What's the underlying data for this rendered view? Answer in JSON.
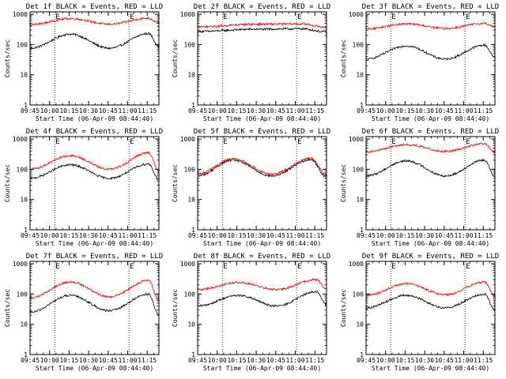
{
  "colors": {
    "events": "#000000",
    "lld": "#ff0000",
    "axes": "#000000",
    "background": "#ffffff"
  },
  "chart_data": [
    {
      "type": "line",
      "title": "Det 1f BLACK = Events, RED = LLD",
      "ylabel": "Counts/sec",
      "xlabel": "Start Time (06-Apr-09 08:44:40)",
      "x_tick_labels": [
        "09:45",
        "10:00",
        "10:15",
        "10:30",
        "10:45",
        "11:00",
        "11:15"
      ],
      "y_tick_labels": [
        "1",
        "10",
        "100",
        "1000"
      ],
      "yscale": "log",
      "ylim": [
        1,
        1200
      ],
      "xlim_minutes": [
        "09:45",
        "11:24"
      ],
      "vlines": [
        "10:04",
        "11:01"
      ],
      "markers": [
        "E",
        "E"
      ],
      "grid": false,
      "series": [
        {
          "name": "Events",
          "color": "#000000",
          "peaks": [
            [
              "10:16",
              220
            ],
            [
              "11:16",
              230
            ]
          ],
          "troughs": [
            [
              "09:45",
              75
            ],
            [
              "10:46",
              75
            ],
            [
              "11:24",
              90
            ]
          ]
        },
        {
          "name": "LLD",
          "color": "#ff0000",
          "peaks": [
            [
              "10:16",
              720
            ],
            [
              "11:16",
              740
            ]
          ],
          "troughs": [
            [
              "09:45",
              450
            ],
            [
              "10:46",
              470
            ],
            [
              "11:24",
              520
            ]
          ]
        }
      ]
    },
    {
      "type": "line",
      "title": "Det 2f BLACK = Events, RED = LLD",
      "ylabel": "Counts/sec",
      "xlabel": "Start Time (06-Apr-09 08:44:40)",
      "x_tick_labels": [
        "09:45",
        "10:00",
        "10:15",
        "10:30",
        "10:45",
        "11:00",
        "11:15"
      ],
      "y_tick_labels": [
        "1",
        "10",
        "100",
        "1000"
      ],
      "yscale": "log",
      "ylim": [
        1,
        1200
      ],
      "xlim_minutes": [
        "09:45",
        "11:24"
      ],
      "vlines": [
        "10:04",
        "11:01"
      ],
      "markers": [
        "E",
        "E"
      ],
      "grid": false,
      "series": [
        {
          "name": "Events",
          "color": "#000000",
          "peaks": [
            [
              "10:30",
              320
            ],
            [
              "11:05",
              330
            ]
          ],
          "troughs": [
            [
              "09:45",
              270
            ],
            [
              "11:24",
              260
            ]
          ]
        },
        {
          "name": "LLD",
          "color": "#ff0000",
          "peaks": [
            [
              "10:30",
              470
            ],
            [
              "11:05",
              480
            ]
          ],
          "troughs": [
            [
              "09:45",
              380
            ],
            [
              "11:24",
              370
            ]
          ]
        }
      ]
    },
    {
      "type": "line",
      "title": "Det 3f BLACK = Events, RED = LLD",
      "ylabel": "Counts/sec",
      "xlabel": "Start Time (06-Apr-09 08:44:40)",
      "x_tick_labels": [
        "09:45",
        "10:00",
        "10:15",
        "10:30",
        "10:45",
        "11:00",
        "11:15"
      ],
      "y_tick_labels": [
        "1",
        "10",
        "100",
        "1000"
      ],
      "yscale": "log",
      "ylim": [
        1,
        1200
      ],
      "xlim_minutes": [
        "09:45",
        "11:24"
      ],
      "vlines": [
        "10:04",
        "11:01"
      ],
      "markers": [
        "E",
        "E"
      ],
      "grid": false,
      "series": [
        {
          "name": "Events",
          "color": "#000000",
          "peaks": [
            [
              "10:16",
              90
            ],
            [
              "11:16",
              95
            ]
          ],
          "troughs": [
            [
              "09:45",
              33
            ],
            [
              "10:46",
              33
            ],
            [
              "11:24",
              38
            ]
          ]
        },
        {
          "name": "LLD",
          "color": "#ff0000",
          "peaks": [
            [
              "10:16",
              480
            ],
            [
              "11:16",
              500
            ]
          ],
          "troughs": [
            [
              "09:45",
              330
            ],
            [
              "10:46",
              340
            ],
            [
              "11:24",
              380
            ]
          ]
        }
      ]
    },
    {
      "type": "line",
      "title": "Det 4f BLACK = Events, RED = LLD",
      "ylabel": "Counts/sec",
      "xlabel": "Start Time (06-Apr-09 08:44:40)",
      "x_tick_labels": [
        "09:45",
        "10:00",
        "10:15",
        "10:30",
        "10:45",
        "11:00",
        "11:15"
      ],
      "y_tick_labels": [
        "1",
        "10",
        "100",
        "1000"
      ],
      "yscale": "log",
      "ylim": [
        1,
        1200
      ],
      "xlim_minutes": [
        "09:45",
        "11:24"
      ],
      "vlines": [
        "10:04",
        "11:01"
      ],
      "markers": [
        "E",
        "E"
      ],
      "grid": false,
      "series": [
        {
          "name": "Events",
          "color": "#000000",
          "peaks": [
            [
              "10:16",
              140
            ],
            [
              "11:16",
              150
            ]
          ],
          "troughs": [
            [
              "09:45",
              50
            ],
            [
              "10:46",
              50
            ],
            [
              "11:24",
              45
            ]
          ]
        },
        {
          "name": "LLD",
          "color": "#ff0000",
          "peaks": [
            [
              "10:16",
              280
            ],
            [
              "11:16",
              350
            ]
          ],
          "troughs": [
            [
              "09:45",
              100
            ],
            [
              "10:46",
              100
            ],
            [
              "11:24",
              90
            ]
          ]
        }
      ]
    },
    {
      "type": "line",
      "title": "Det 5f BLACK = Events, RED = LLD",
      "ylabel": "Counts/sec",
      "xlabel": "Start Time (06-Apr-09 08:44:40)",
      "x_tick_labels": [
        "09:45",
        "10:00",
        "10:15",
        "10:30",
        "10:45",
        "11:00",
        "11:15"
      ],
      "y_tick_labels": [
        "1",
        "10",
        "100",
        "1000"
      ],
      "yscale": "log",
      "ylim": [
        1,
        1200
      ],
      "xlim_minutes": [
        "09:45",
        "11:24"
      ],
      "vlines": [
        "10:04",
        "11:01"
      ],
      "markers": [
        "E",
        "E"
      ],
      "grid": false,
      "series": [
        {
          "name": "Events",
          "color": "#000000",
          "peaks": [
            [
              "10:12",
              200
            ],
            [
              "11:12",
              210
            ]
          ],
          "troughs": [
            [
              "09:45",
              60
            ],
            [
              "10:42",
              60
            ],
            [
              "11:24",
              55
            ]
          ]
        },
        {
          "name": "LLD",
          "color": "#ff0000",
          "peaks": [
            [
              "10:12",
              220
            ],
            [
              "11:12",
              230
            ]
          ],
          "troughs": [
            [
              "09:45",
              70
            ],
            [
              "10:42",
              70
            ],
            [
              "11:24",
              65
            ]
          ]
        }
      ]
    },
    {
      "type": "line",
      "title": "Det 6f BLACK = Events, RED = LLD",
      "ylabel": "Counts/sec",
      "xlabel": "Start Time (06-Apr-09 08:44:40)",
      "x_tick_labels": [
        "09:45",
        "10:00",
        "10:15",
        "10:30",
        "10:45",
        "11:00",
        "11:15"
      ],
      "y_tick_labels": [
        "1",
        "10",
        "100",
        "1000"
      ],
      "yscale": "log",
      "ylim": [
        1,
        1200
      ],
      "xlim_minutes": [
        "09:45",
        "11:24"
      ],
      "vlines": [
        "10:04",
        "11:01"
      ],
      "markers": [
        "E",
        "E"
      ],
      "grid": false,
      "series": [
        {
          "name": "Events",
          "color": "#000000",
          "peaks": [
            [
              "10:16",
              190
            ],
            [
              "11:16",
              200
            ]
          ],
          "troughs": [
            [
              "09:45",
              60
            ],
            [
              "10:46",
              60
            ],
            [
              "11:24",
              55
            ]
          ]
        },
        {
          "name": "LLD",
          "color": "#ff0000",
          "peaks": [
            [
              "10:16",
              650
            ],
            [
              "11:16",
              700
            ]
          ],
          "troughs": [
            [
              "09:45",
              380
            ],
            [
              "10:46",
              390
            ],
            [
              "11:24",
              360
            ]
          ]
        }
      ]
    },
    {
      "type": "line",
      "title": "Det 7f BLACK = Events, RED = LLD",
      "ylabel": "Counts/sec",
      "xlabel": "Start Time (06-Apr-09 08:44:40)",
      "x_tick_labels": [
        "09:45",
        "10:00",
        "10:15",
        "10:30",
        "10:45",
        "11:00",
        "11:15"
      ],
      "y_tick_labels": [
        "1",
        "10",
        "100",
        "1000"
      ],
      "yscale": "log",
      "ylim": [
        1,
        1200
      ],
      "xlim_minutes": [
        "09:45",
        "11:24"
      ],
      "vlines": [
        "10:04",
        "11:01"
      ],
      "markers": [
        "E",
        "E"
      ],
      "grid": false,
      "series": [
        {
          "name": "Events",
          "color": "#000000",
          "peaks": [
            [
              "10:16",
              90
            ],
            [
              "11:16",
              100
            ]
          ],
          "troughs": [
            [
              "09:45",
              25
            ],
            [
              "10:46",
              28
            ],
            [
              "11:24",
              20
            ]
          ]
        },
        {
          "name": "LLD",
          "color": "#ff0000",
          "peaks": [
            [
              "10:16",
              250
            ],
            [
              "11:16",
              280
            ]
          ],
          "troughs": [
            [
              "09:45",
              75
            ],
            [
              "10:46",
              80
            ],
            [
              "11:24",
              60
            ]
          ]
        }
      ]
    },
    {
      "type": "line",
      "title": "Det 8f BLACK = Events, RED = LLD",
      "ylabel": "Counts/sec",
      "xlabel": "Start Time (06-Apr-09 08:44:40)",
      "x_tick_labels": [
        "09:45",
        "10:00",
        "10:15",
        "10:30",
        "10:45",
        "11:00",
        "11:15"
      ],
      "y_tick_labels": [
        "1",
        "10",
        "100",
        "1000"
      ],
      "yscale": "log",
      "ylim": [
        1,
        1200
      ],
      "xlim_minutes": [
        "09:45",
        "11:24"
      ],
      "vlines": [
        "10:04",
        "11:01"
      ],
      "markers": [
        "E",
        "E"
      ],
      "grid": false,
      "series": [
        {
          "name": "Events",
          "color": "#000000",
          "peaks": [
            [
              "10:16",
              90
            ],
            [
              "11:16",
              120
            ]
          ],
          "troughs": [
            [
              "09:45",
              40
            ],
            [
              "10:46",
              40
            ],
            [
              "11:24",
              45
            ]
          ]
        },
        {
          "name": "LLD",
          "color": "#ff0000",
          "peaks": [
            [
              "10:16",
              240
            ],
            [
              "11:16",
              300
            ]
          ],
          "troughs": [
            [
              "09:45",
              140
            ],
            [
              "10:46",
              140
            ],
            [
              "11:24",
              150
            ]
          ]
        }
      ]
    },
    {
      "type": "line",
      "title": "Det 9f BLACK = Events, RED = LLD",
      "ylabel": "Counts/sec",
      "xlabel": "Start Time (06-Apr-09 08:44:40)",
      "x_tick_labels": [
        "09:45",
        "10:00",
        "10:15",
        "10:30",
        "10:45",
        "11:00",
        "11:15"
      ],
      "y_tick_labels": [
        "1",
        "10",
        "100",
        "1000"
      ],
      "yscale": "log",
      "ylim": [
        1,
        1200
      ],
      "xlim_minutes": [
        "09:45",
        "11:24"
      ],
      "vlines": [
        "10:04",
        "11:01"
      ],
      "markers": [
        "E",
        "E"
      ],
      "grid": false,
      "series": [
        {
          "name": "Events",
          "color": "#000000",
          "peaks": [
            [
              "10:16",
              90
            ],
            [
              "11:16",
              100
            ]
          ],
          "troughs": [
            [
              "09:45",
              35
            ],
            [
              "10:46",
              35
            ],
            [
              "11:24",
              30
            ]
          ]
        },
        {
          "name": "LLD",
          "color": "#ff0000",
          "peaks": [
            [
              "10:16",
              220
            ],
            [
              "11:16",
              250
            ]
          ],
          "troughs": [
            [
              "09:45",
              90
            ],
            [
              "10:46",
              95
            ],
            [
              "11:24",
              85
            ]
          ]
        }
      ]
    }
  ]
}
